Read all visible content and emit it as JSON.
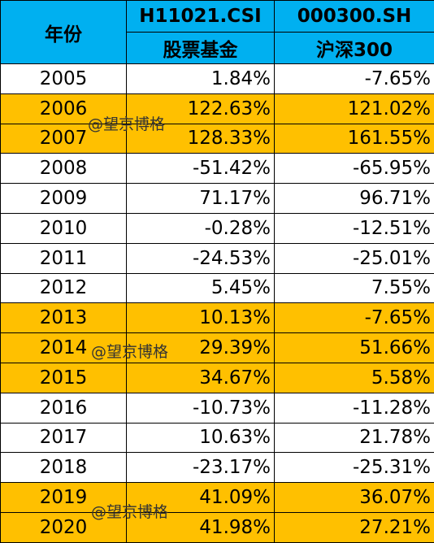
{
  "table": {
    "header": [
      [
        "年份",
        "H11021.CSI",
        "000300.SH"
      ],
      [
        "股票基金",
        "沪深300"
      ]
    ],
    "rows": [
      {
        "cells": [
          "2005",
          "1.84%",
          "-7.65%"
        ],
        "highlight": false
      },
      {
        "cells": [
          "2006",
          "122.63%",
          "121.02%"
        ],
        "highlight": true
      },
      {
        "cells": [
          "2007",
          "128.33%",
          "161.55%"
        ],
        "highlight": true
      },
      {
        "cells": [
          "2008",
          "-51.42%",
          "-65.95%"
        ],
        "highlight": false
      },
      {
        "cells": [
          "2009",
          "71.17%",
          "96.71%"
        ],
        "highlight": false
      },
      {
        "cells": [
          "2010",
          "-0.28%",
          "-12.51%"
        ],
        "highlight": false
      },
      {
        "cells": [
          "2011",
          "-24.53%",
          "-25.01%"
        ],
        "highlight": false
      },
      {
        "cells": [
          "2012",
          "5.45%",
          "7.55%"
        ],
        "highlight": false
      },
      {
        "cells": [
          "2013",
          "10.13%",
          "-7.65%"
        ],
        "highlight": true
      },
      {
        "cells": [
          "2014",
          "29.39%",
          "51.66%"
        ],
        "highlight": true
      },
      {
        "cells": [
          "2015",
          "34.67%",
          "5.58%"
        ],
        "highlight": true
      },
      {
        "cells": [
          "2016",
          "-10.73%",
          "-11.28%"
        ],
        "highlight": false
      },
      {
        "cells": [
          "2017",
          "10.63%",
          "21.78%"
        ],
        "highlight": false
      },
      {
        "cells": [
          "2018",
          "-23.17%",
          "-25.31%"
        ],
        "highlight": false
      },
      {
        "cells": [
          "2019",
          "41.09%",
          "36.07%"
        ],
        "highlight": true
      },
      {
        "cells": [
          "2020",
          "41.98%",
          "27.21%"
        ],
        "highlight": true
      }
    ]
  },
  "watermarks": [
    "@望京博格",
    "@望京博格",
    "@望京博格"
  ]
}
